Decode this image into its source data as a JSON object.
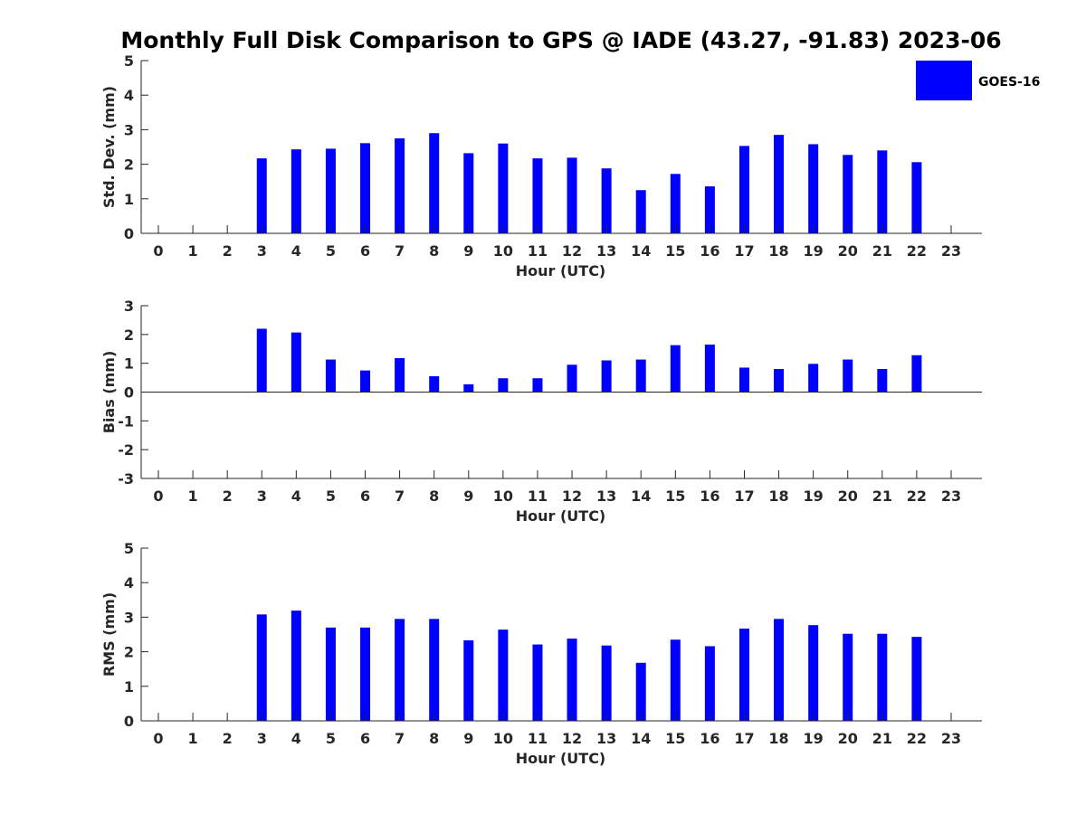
{
  "chart_data": {
    "title": "Monthly Full Disk Comparison to GPS @ IADE (43.27, -91.83) 2023-06",
    "legend": {
      "entries": [
        "GOES-16"
      ],
      "placement": "top-right"
    },
    "colors": {
      "bar": "#0000ff",
      "axis": "#262626"
    },
    "panels": [
      {
        "type": "bar",
        "ylabel": "Std. Dev. (mm)",
        "xlabel": "Hour (UTC)",
        "ylim": [
          0,
          5
        ],
        "yticks": [
          0,
          1,
          2,
          3,
          4,
          5
        ],
        "categories": [
          0,
          1,
          2,
          3,
          4,
          5,
          6,
          7,
          8,
          9,
          10,
          11,
          12,
          13,
          14,
          15,
          16,
          17,
          18,
          19,
          20,
          21,
          22,
          23
        ],
        "series": [
          {
            "name": "GOES-16",
            "values": [
              null,
              null,
              null,
              2.17,
              2.43,
              2.45,
              2.61,
              2.75,
              2.9,
              2.32,
              2.6,
              2.17,
              2.19,
              1.88,
              1.25,
              1.72,
              1.36,
              2.53,
              2.85,
              2.58,
              2.27,
              2.4,
              2.06,
              null
            ]
          }
        ]
      },
      {
        "type": "bar",
        "ylabel": "Bias (mm)",
        "xlabel": "Hour (UTC)",
        "ylim": [
          -3,
          3
        ],
        "yticks": [
          -3,
          -2,
          -1,
          0,
          1,
          2,
          3
        ],
        "categories": [
          0,
          1,
          2,
          3,
          4,
          5,
          6,
          7,
          8,
          9,
          10,
          11,
          12,
          13,
          14,
          15,
          16,
          17,
          18,
          19,
          20,
          21,
          22,
          23
        ],
        "series": [
          {
            "name": "GOES-16",
            "values": [
              null,
              null,
              null,
              2.2,
              2.07,
              1.13,
              0.75,
              1.18,
              0.55,
              0.27,
              0.48,
              0.48,
              0.95,
              1.1,
              1.13,
              1.63,
              1.65,
              0.85,
              0.8,
              0.98,
              1.13,
              0.8,
              1.28,
              null
            ]
          }
        ]
      },
      {
        "type": "bar",
        "ylabel": "RMS (mm)",
        "xlabel": "Hour (UTC)",
        "ylim": [
          0,
          5
        ],
        "yticks": [
          0,
          1,
          2,
          3,
          4,
          5
        ],
        "categories": [
          0,
          1,
          2,
          3,
          4,
          5,
          6,
          7,
          8,
          9,
          10,
          11,
          12,
          13,
          14,
          15,
          16,
          17,
          18,
          19,
          20,
          21,
          22,
          23
        ],
        "series": [
          {
            "name": "GOES-16",
            "values": [
              null,
              null,
              null,
              3.08,
              3.19,
              2.7,
              2.7,
              2.95,
              2.95,
              2.33,
              2.64,
              2.21,
              2.38,
              2.18,
              1.68,
              2.35,
              2.16,
              2.67,
              2.95,
              2.77,
              2.52,
              2.52,
              2.43,
              null
            ]
          }
        ]
      }
    ]
  }
}
